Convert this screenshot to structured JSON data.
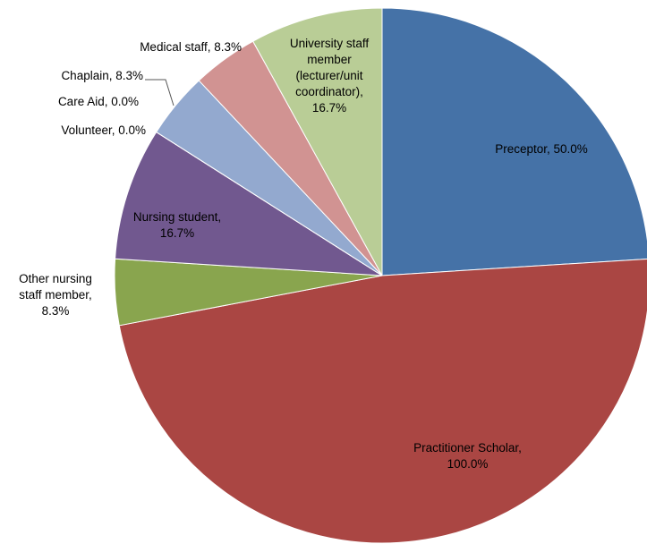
{
  "chart_data": {
    "type": "pie",
    "values": [
      50,
      100,
      8.3,
      16.7,
      0,
      0,
      8.3,
      8.3,
      16.7
    ],
    "value_labels": [
      "Preceptor, 50.0%",
      "Practitioner Scholar, 100.0%",
      "Other nursing staff member, 8.3%",
      "Nursing student, 16.7%",
      "Volunteer, 0.0%",
      "Care Aid, 0.0%",
      "Chaplain, 8.3%",
      "Medical staff, 8.3%",
      "University staff member (lecturer/unit coordinator), 16.7%"
    ],
    "colors": [
      "#4572a7",
      "#aa4643",
      "#89a54e",
      "#71588f",
      "#4198af",
      "#db843d",
      "#93a9cf",
      "#d19392",
      "#b9cd96"
    ]
  }
}
